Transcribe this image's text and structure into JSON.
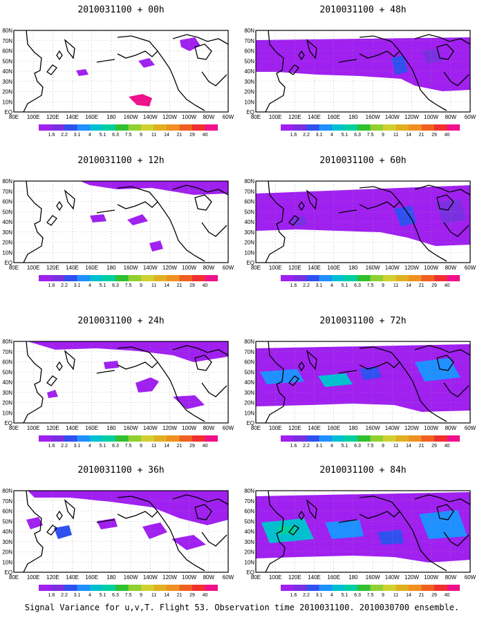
{
  "footer_caption": "Signal Variance for u,v,T. Flight 53. Observation time 2010031100. 2010030700 ensemble.",
  "lat_labels": [
    "80N",
    "70N",
    "60N",
    "50N",
    "40N",
    "30N",
    "20N",
    "10N",
    "EQ"
  ],
  "lon_labels": [
    "80E",
    "100E",
    "120E",
    "140E",
    "160E",
    "180",
    "160W",
    "140W",
    "120W",
    "100W",
    "80W",
    "60W"
  ],
  "colorbar": {
    "colors": [
      "#a020f0",
      "#7a30e0",
      "#3050f0",
      "#1e90ff",
      "#00c0d0",
      "#00d0a0",
      "#30c030",
      "#90d030",
      "#d0d030",
      "#e0b020",
      "#f09020",
      "#f06020",
      "#f03030",
      "#f0108a"
    ],
    "labels": [
      "1.6",
      "2.2",
      "3.1",
      "4",
      "5.1",
      "6.3",
      "7.5",
      "9",
      "11",
      "14",
      "21",
      "29",
      "40"
    ]
  },
  "panels": [
    {
      "id": "p00",
      "title": "2010031100 + 00h",
      "level": 0
    },
    {
      "id": "p12",
      "title": "2010031100 + 12h",
      "level": 1
    },
    {
      "id": "p24",
      "title": "2010031100 + 24h",
      "level": 2
    },
    {
      "id": "p36",
      "title": "2010031100 + 36h",
      "level": 3
    },
    {
      "id": "p48",
      "title": "2010031100 + 48h",
      "level": 4
    },
    {
      "id": "p60",
      "title": "2010031100 + 60h",
      "level": 5
    },
    {
      "id": "p72",
      "title": "2010031100 + 72h",
      "level": 6
    },
    {
      "id": "p84",
      "title": "2010031100 + 84h",
      "level": 7
    }
  ]
}
